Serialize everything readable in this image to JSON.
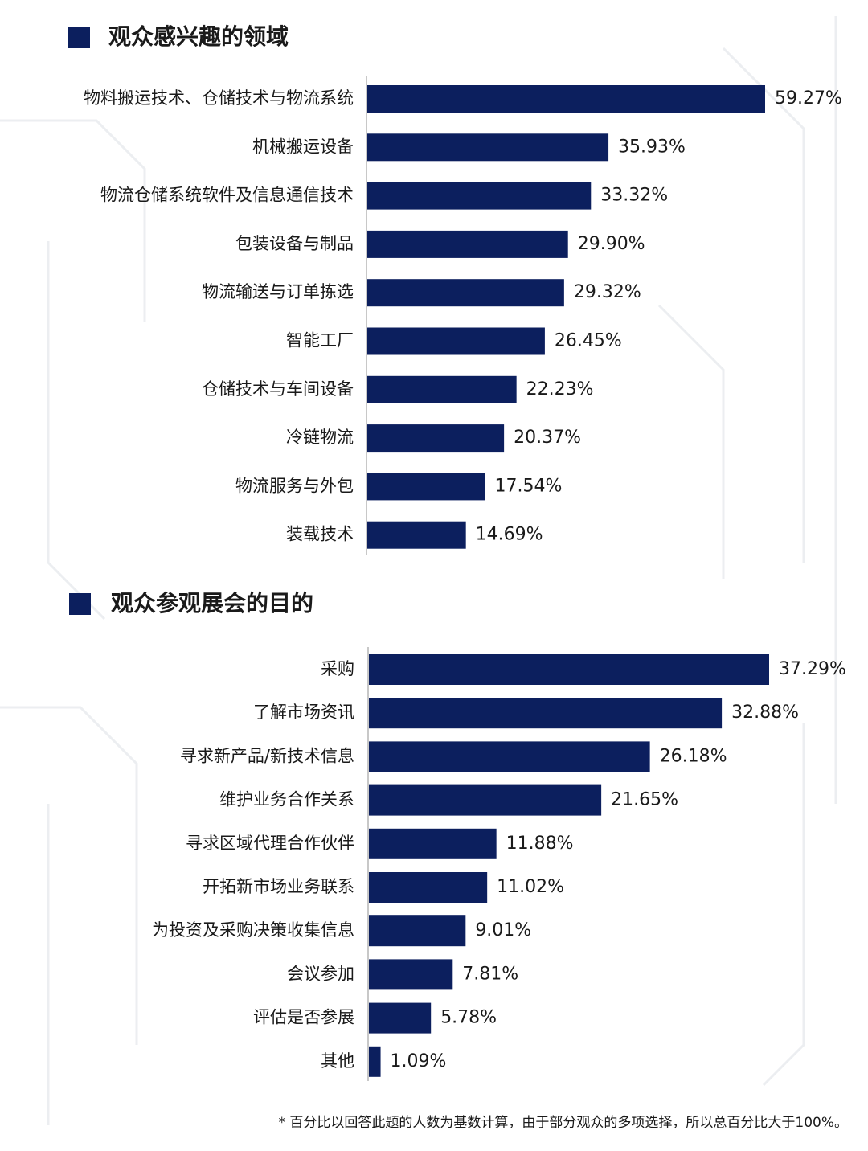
{
  "chart_data": [
    {
      "type": "bar",
      "orientation": "horizontal",
      "title": "观众感兴趣的领域",
      "color": "#0c1f5e",
      "categories": [
        "物料搬运技术、仓储技术与物流系统",
        "机械搬运设备",
        "物流仓储系统软件及信息通信技术",
        "包装设备与制品",
        "物流输送与订单拣选",
        "智能工厂",
        "仓储技术与车间设备",
        "冷链物流",
        "物流服务与外包",
        "装载技术"
      ],
      "values": [
        59.27,
        35.93,
        33.32,
        29.9,
        29.32,
        26.45,
        22.23,
        20.37,
        17.54,
        14.69
      ],
      "value_labels": [
        "59.27%",
        "35.93%",
        "33.32%",
        "29.90%",
        "29.32%",
        "26.45%",
        "22.23%",
        "20.37%",
        "17.54%",
        "14.69%"
      ]
    },
    {
      "type": "bar",
      "orientation": "horizontal",
      "title": "观众参观展会的目的",
      "color": "#0c1f5e",
      "categories": [
        "采购",
        "了解市场资讯",
        "寻求新产品/新技术信息",
        "维护业务合作关系",
        "寻求区域代理合作伙伴",
        "开拓新市场业务联系",
        "为投资及采购决策收集信息",
        "会议参加",
        "评估是否参展",
        "其他"
      ],
      "values": [
        37.29,
        32.88,
        26.18,
        21.65,
        11.88,
        11.02,
        9.01,
        7.81,
        5.78,
        1.09
      ],
      "value_labels": [
        "37.29%",
        "32.88%",
        "26.18%",
        "21.65%",
        "11.88%",
        "11.02%",
        "9.01%",
        "7.81%",
        "5.78%",
        "1.09%"
      ]
    }
  ],
  "footnote": "* 百分比以回答此题的人数为基数计算，由于部分观众的多项选择，所以总百分比大于100%。"
}
